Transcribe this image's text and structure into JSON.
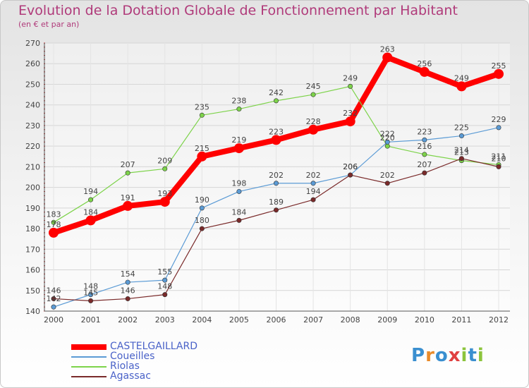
{
  "header": {
    "title": "Evolution de la Dotation Globale de Fonctionnement par Habitant",
    "subtitle": "(en € et par an)"
  },
  "logo": {
    "text": "Proxiti",
    "letters": [
      {
        "ch": "P",
        "color": "#3a8fd0"
      },
      {
        "ch": "r",
        "color": "#e98b2a"
      },
      {
        "ch": "o",
        "color": "#3a8fd0"
      },
      {
        "ch": "x",
        "color": "#e04040"
      },
      {
        "ch": "i",
        "color": "#8cc43c"
      },
      {
        "ch": "t",
        "color": "#3a8fd0"
      },
      {
        "ch": "i",
        "color": "#8cc43c"
      }
    ]
  },
  "chart_data": {
    "type": "line",
    "title": "Evolution de la Dotation Globale de Fonctionnement par Habitant",
    "subtitle": "(en € et par an)",
    "xlabel": "",
    "ylabel": "",
    "ylim": [
      140,
      270
    ],
    "yticks": [
      140,
      150,
      160,
      170,
      180,
      190,
      200,
      210,
      220,
      230,
      240,
      250,
      260,
      270
    ],
    "categories": [
      "2000",
      "2001",
      "2002",
      "2003",
      "2004",
      "2005",
      "2006",
      "2007",
      "2008",
      "2009",
      "2010",
      "2011",
      "2012"
    ],
    "grid": true,
    "legend_position": "bottom-left",
    "series": [
      {
        "name": "CASTELGAILLARD",
        "color": "#ff0000",
        "values": [
          178,
          184,
          191,
          193,
          215,
          219,
          223,
          228,
          232,
          263,
          256,
          249,
          255
        ]
      },
      {
        "name": "Coueilles",
        "color": "#5b9bd5",
        "values": [
          142,
          148,
          154,
          155,
          190,
          198,
          202,
          202,
          206,
          222,
          223,
          225,
          229
        ]
      },
      {
        "name": "Riolas",
        "color": "#7dd34a",
        "values": [
          183,
          194,
          207,
          209,
          235,
          238,
          242,
          245,
          249,
          220,
          216,
          213,
          211
        ]
      },
      {
        "name": "Agassac",
        "color": "#7a2a2a",
        "values": [
          146,
          145,
          146,
          148,
          180,
          184,
          189,
          194,
          206,
          202,
          207,
          214,
          210
        ]
      }
    ]
  }
}
